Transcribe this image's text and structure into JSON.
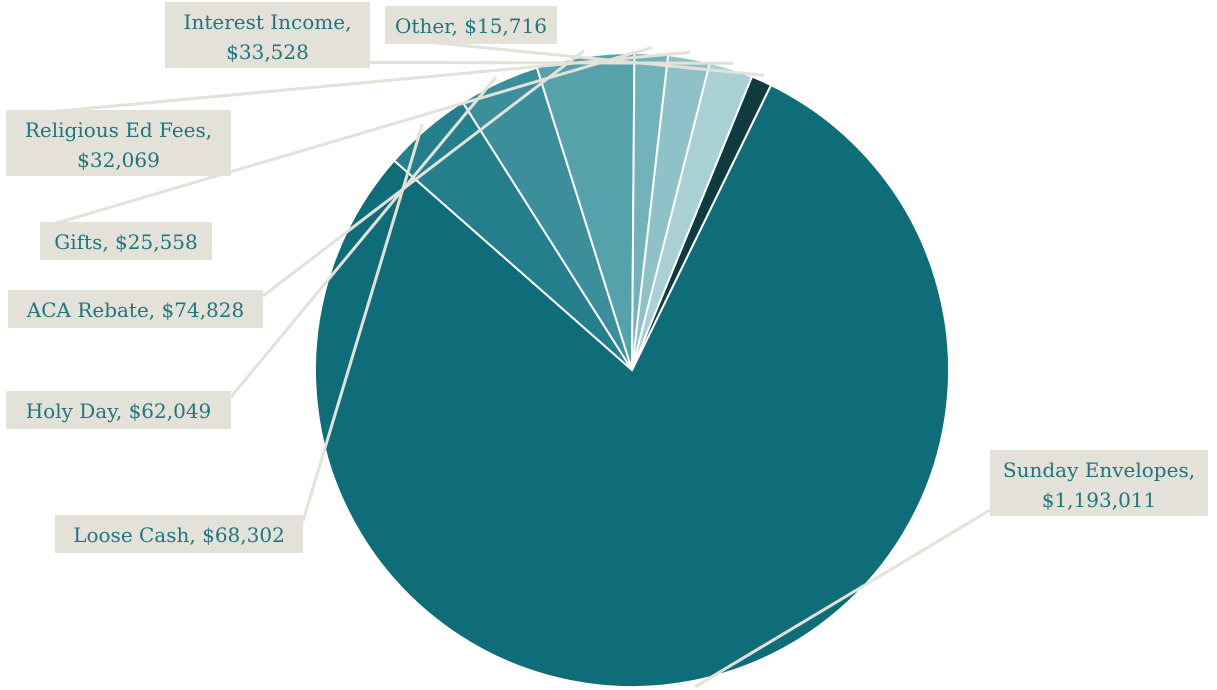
{
  "chart_data": {
    "type": "pie",
    "title": "",
    "slices": [
      {
        "label": "Sunday Envelopes,",
        "value_text": "$1,193,011",
        "value": 1193011,
        "color": "#0f6d79"
      },
      {
        "label": "Loose Cash,",
        "value_text": "$68,302",
        "value": 68302,
        "color": "#237f8b"
      },
      {
        "label": "Holy Day,",
        "value_text": "$62,049",
        "value": 62049,
        "color": "#3a8f9a"
      },
      {
        "label": "ACA Rebate,",
        "value_text": "$74,828",
        "value": 74828,
        "color": "#55a2ab"
      },
      {
        "label": "Gifts,",
        "value_text": "$25,558",
        "value": 25558,
        "color": "#72b2ba"
      },
      {
        "label": "Religious Ed Fees,",
        "value_text": "$32,069",
        "value": 32069,
        "color": "#8ec2c8"
      },
      {
        "label": "Interest Income,",
        "value_text": "$33,528",
        "value": 33528,
        "color": "#a8d0d5"
      },
      {
        "label": "Other,",
        "value_text": "$15,716",
        "value": 15716,
        "color": "#0f3b40"
      }
    ],
    "legend": "none"
  }
}
